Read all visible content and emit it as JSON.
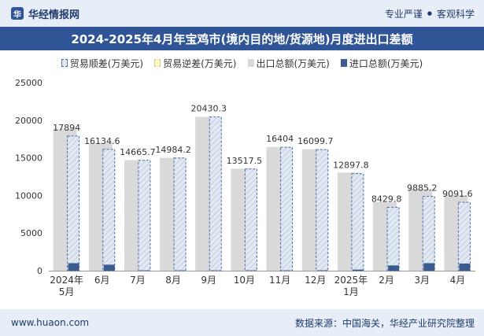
{
  "header": {
    "brand_name": "华经情报网",
    "tagline_left": "专业严谨",
    "tagline_sep": "●",
    "tagline_right": "客观科学",
    "title": "2024-2025年4月年宝鸡市(境内目的地/货源地)月度进出口差额"
  },
  "footer": {
    "site": "www.huaon.com",
    "source": "数据来源：中国海关，华经产业研究院整理"
  },
  "chart_data": {
    "type": "bar",
    "categories": [
      "2024年\n5月",
      "6月",
      "7月",
      "8月",
      "9月",
      "10月",
      "11月",
      "12月",
      "2025年\n1月",
      "2月",
      "3月",
      "4月"
    ],
    "series": [
      {
        "name": "贸易顺差(万美元)",
        "values": [
          17894,
          16134.6,
          14665.7,
          14984.2,
          20430.3,
          13517.5,
          16404,
          16099.7,
          12897.8,
          8429.8,
          9885.2,
          9091.6
        ]
      },
      {
        "name": "贸易逆差(万美元)",
        "values": [
          0,
          0,
          0,
          0,
          0,
          0,
          0,
          0,
          0,
          0,
          0,
          0
        ]
      },
      {
        "name": "出口总额(万美元)",
        "values": [
          18900,
          17000,
          14700,
          15000,
          20450,
          13550,
          16450,
          16150,
          13050,
          9150,
          10900,
          10050
        ]
      },
      {
        "name": "进口总额(万美元)",
        "values": [
          1000,
          800,
          40,
          30,
          30,
          30,
          30,
          50,
          140,
          700,
          1000,
          950
        ]
      }
    ],
    "data_labels": [
      "17894",
      "16134.6",
      "14665.7",
      "14984.2",
      "20430.3",
      "13517.5",
      "16404",
      "16099.7",
      "12897.8",
      "8429.8",
      "9885.2",
      "9091.6"
    ],
    "y_ticks": [
      "0",
      "5000",
      "10000",
      "15000",
      "20000",
      "25000"
    ],
    "ylim": [
      0,
      25000
    ],
    "legend_position": "top",
    "grid": false,
    "colors": {
      "surplus_fill": "#e3e9f2",
      "surplus_stroke": "#4a6fa5",
      "deficit_fill": "#fff9d6",
      "deficit_stroke": "#d9c96a",
      "export": "#d9d9d9",
      "import": "#3b5a8f"
    }
  }
}
